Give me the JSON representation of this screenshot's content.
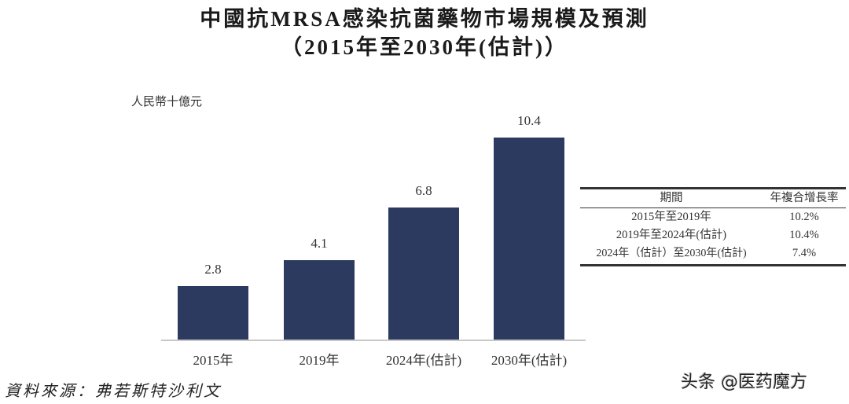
{
  "header": {
    "title_line1": "中國抗MRSA感染抗菌藥物市場規模及預測",
    "title_line2": "（2015年至2030年(估計)）"
  },
  "unit_label": "人民幣十億元",
  "bars": [
    {
      "category": "2015年",
      "value": 2.8,
      "label": "2.8"
    },
    {
      "category": "2019年",
      "value": 4.1,
      "label": "4.1"
    },
    {
      "category": "2024年(估計)",
      "value": 6.8,
      "label": "6.8"
    },
    {
      "category": "2030年(估計)",
      "value": 10.4,
      "label": "10.4"
    }
  ],
  "cagr_table": {
    "headers": [
      "期間",
      "年複合增長率"
    ],
    "rows": [
      [
        "2015年至2019年",
        "10.2%"
      ],
      [
        "2019年至2024年(估計)",
        "10.4%"
      ],
      [
        "2024年（估計）至2030年(估計)",
        "7.4%"
      ]
    ]
  },
  "source": "資料來源：弗若斯特沙利文",
  "watermark": "头条 @医药魔方",
  "colors": {
    "bar": "#2c3a5f",
    "axis": "#c8c8c8"
  },
  "chart_data": {
    "type": "bar",
    "title": "中國抗MRSA感染抗菌藥物市場規模及預測（2015年至2030年(估計)）",
    "categories": [
      "2015年",
      "2019年",
      "2024年(估計)",
      "2030年(估計)"
    ],
    "values": [
      2.8,
      4.1,
      6.8,
      10.4
    ],
    "xlabel": "",
    "ylabel": "人民幣十億元",
    "ylim": [
      0,
      10.4
    ],
    "grid": false,
    "legend": null,
    "annotations": {
      "cagr_table": [
        {
          "period": "2015年至2019年",
          "cagr": "10.2%"
        },
        {
          "period": "2019年至2024年(估計)",
          "cagr": "10.4%"
        },
        {
          "period": "2024年（估計）至2030年(估計)",
          "cagr": "7.4%"
        }
      ],
      "source": "資料來源：弗若斯特沙利文"
    }
  }
}
